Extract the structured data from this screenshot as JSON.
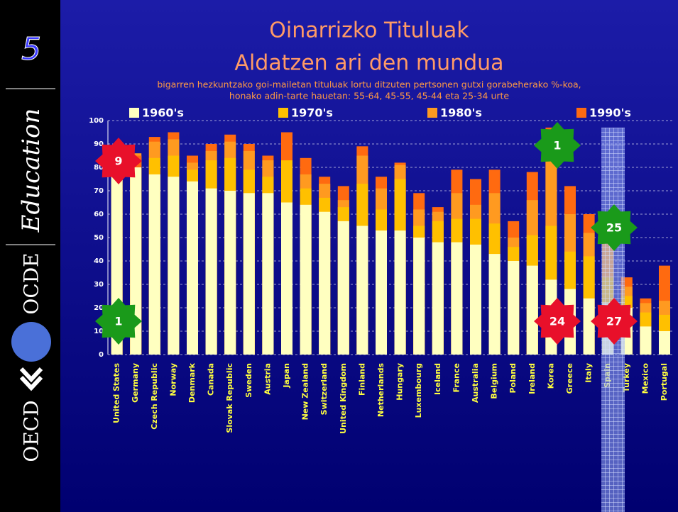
{
  "sidebar": {
    "number": "5",
    "word": "Education",
    "left_name": "OECD",
    "right_name": "OCDE"
  },
  "chart_data": {
    "type": "bar",
    "title": "Oinarrizko Tituluak",
    "title2": "Aldatzen ari den mundua",
    "subtitle": "bigarren hezkuntzako goi-mailetan tituluak lortu ditzuten pertsonen gutxi gorabeherako %-koa,",
    "subtitle2": "honako adin-tarte hauetan: 55-64, 45-55, 45-44 eta 25-34 urte",
    "categories": [
      "United States",
      "Germany",
      "Czech Republic",
      "Norway",
      "Denmark",
      "Canada",
      "Slovak Republic",
      "Sweden",
      "Austria",
      "Japan",
      "New Zealand",
      "Switzerland",
      "United Kingdom",
      "Finland",
      "Netherlands",
      "Hungary",
      "Luxembourg",
      "Iceland",
      "France",
      "Australia",
      "Belgium",
      "Poland",
      "Ireland",
      "Korea",
      "Greece",
      "Italy",
      "Spain",
      "Turkey",
      "Mexico",
      "Portugal"
    ],
    "series": [
      {
        "name": "1960's",
        "color": "#ffffc0",
        "values": [
          86,
          80,
          77,
          76,
          74,
          71,
          70,
          69,
          69,
          65,
          64,
          61,
          57,
          55,
          53,
          53,
          50,
          48,
          48,
          47,
          43,
          40,
          38,
          32,
          28,
          24,
          22,
          20,
          12,
          10
        ]
      },
      {
        "name": "1970's",
        "color": "#ffc000",
        "values": [
          87,
          85,
          84,
          85,
          79,
          83,
          84,
          79,
          76,
          83,
          71,
          67,
          63,
          73,
          62,
          75,
          55,
          57,
          58,
          58,
          56,
          46,
          51,
          55,
          44,
          42,
          33,
          25,
          18,
          17
        ]
      },
      {
        "name": "1980's",
        "color": "#ff9a20",
        "values": [
          87,
          86,
          91,
          92,
          82,
          87,
          91,
          87,
          83,
          95,
          77,
          73,
          66,
          85,
          71,
          81,
          62,
          61,
          69,
          64,
          69,
          50,
          66,
          83,
          60,
          52,
          49,
          29,
          22,
          23
        ]
      },
      {
        "name": "1990's",
        "color": "#ff6a10",
        "values": [
          87,
          85,
          93,
          95,
          85,
          90,
          94,
          90,
          85,
          95,
          84,
          76,
          72,
          89,
          76,
          82,
          69,
          63,
          79,
          75,
          79,
          57,
          78,
          97,
          72,
          60,
          60,
          33,
          24,
          38
        ]
      }
    ],
    "ylim": [
      0,
      100
    ],
    "yticks": [
      0,
      10,
      20,
      30,
      40,
      50,
      60,
      70,
      80,
      90,
      100
    ],
    "grid": true,
    "annotations": [
      {
        "text": "9",
        "color": "#e8102a"
      },
      {
        "text": "1",
        "color": "#1a9a1a"
      },
      {
        "text": "1",
        "color": "#1a9a1a"
      },
      {
        "text": "25",
        "color": "#1a9a1a"
      },
      {
        "text": "24",
        "color": "#e8102a"
      },
      {
        "text": "27",
        "color": "#e8102a"
      }
    ]
  }
}
